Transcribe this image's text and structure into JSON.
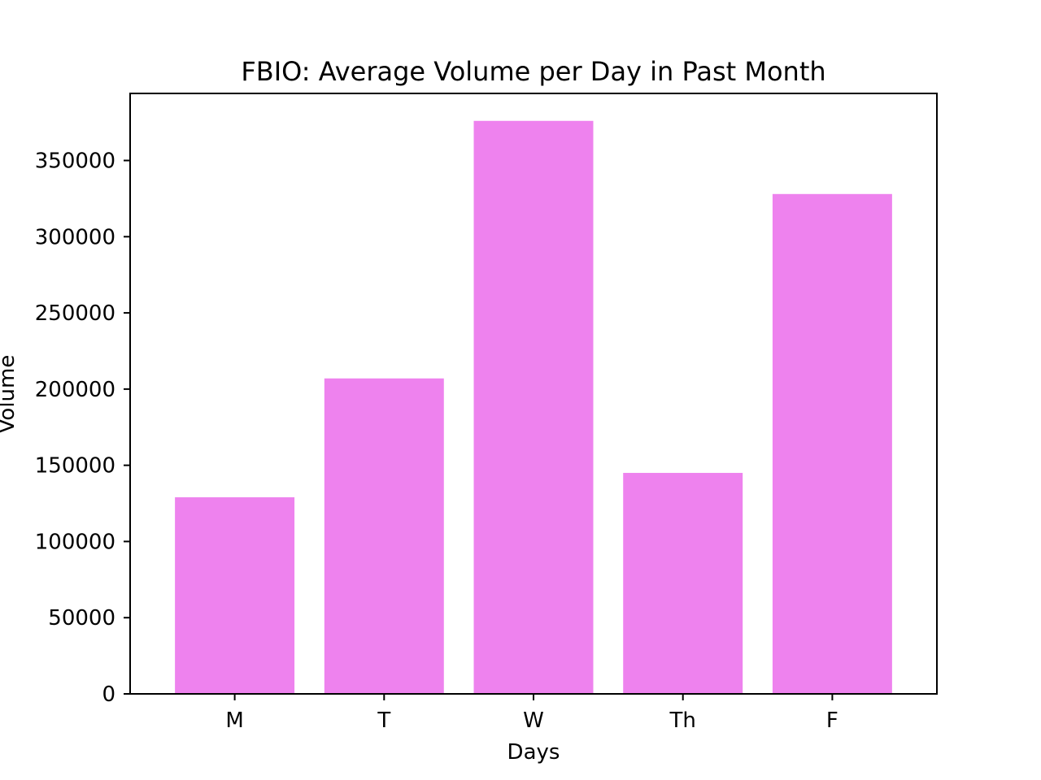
{
  "chart_data": {
    "type": "bar",
    "title": "FBIO: Average Volume per Day in Past Month",
    "xlabel": "Days",
    "ylabel": "Volume",
    "categories": [
      "M",
      "T",
      "W",
      "Th",
      "F"
    ],
    "values": [
      129000,
      207000,
      376000,
      145000,
      328000
    ],
    "ylim": [
      0,
      394000
    ],
    "yticks": [
      0,
      50000,
      100000,
      150000,
      200000,
      250000,
      300000,
      350000
    ],
    "bar_color": "#ee82ee",
    "grid": false,
    "legend": "none"
  }
}
